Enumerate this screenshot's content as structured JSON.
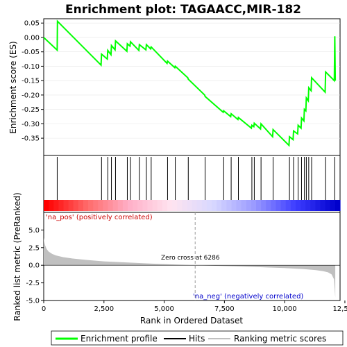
{
  "chart_data": {
    "type": "line",
    "title": "Enrichment plot: TAGAACC,MIR-182",
    "upper_panel": {
      "ylabel": "Enrichment score (ES)",
      "ylim": [
        -0.41,
        0.065
      ],
      "yticks": [
        0.05,
        0.0,
        -0.05,
        -0.1,
        -0.15,
        -0.2,
        -0.25,
        -0.3,
        -0.35
      ],
      "ytick_labels": [
        "0.05",
        "0.00",
        "-0.05",
        "-0.10",
        "-0.15",
        "-0.20",
        "-0.25",
        "-0.30",
        "-0.35"
      ],
      "series": [
        {
          "name": "Enrichment profile",
          "color": "#00ff00",
          "x": [
            0,
            560,
            570,
            2380,
            2400,
            2640,
            2660,
            2790,
            2810,
            2960,
            2980,
            3450,
            3470,
            3580,
            3600,
            3950,
            3970,
            4240,
            4260,
            4440,
            4460,
            5120,
            5140,
            5440,
            5460,
            5980,
            6000,
            6680,
            6700,
            7450,
            7470,
            7760,
            7780,
            8060,
            8080,
            8620,
            8640,
            8720,
            8740,
            9000,
            9020,
            9500,
            9520,
            10180,
            10200,
            10350,
            10370,
            10540,
            10560,
            10680,
            10700,
            10800,
            10820,
            10880,
            10900,
            10980,
            11000,
            11100,
            11120,
            11680,
            11700,
            12060,
            12080,
            12100
          ],
          "y": [
            0.0,
            -0.044,
            0.056,
            -0.096,
            -0.058,
            -0.075,
            -0.045,
            -0.06,
            -0.028,
            -0.043,
            -0.012,
            -0.048,
            -0.022,
            -0.03,
            -0.015,
            -0.045,
            -0.025,
            -0.043,
            -0.025,
            -0.04,
            -0.033,
            -0.09,
            -0.082,
            -0.105,
            -0.1,
            -0.14,
            -0.145,
            -0.2,
            -0.205,
            -0.26,
            -0.255,
            -0.275,
            -0.265,
            -0.285,
            -0.278,
            -0.315,
            -0.305,
            -0.31,
            -0.298,
            -0.318,
            -0.3,
            -0.345,
            -0.32,
            -0.375,
            -0.345,
            -0.355,
            -0.325,
            -0.335,
            -0.305,
            -0.315,
            -0.28,
            -0.29,
            -0.25,
            -0.255,
            -0.21,
            -0.22,
            -0.175,
            -0.185,
            -0.14,
            -0.19,
            -0.12,
            -0.15,
            0.004,
            -0.15
          ]
        }
      ]
    },
    "hits_panel": {
      "name": "Hits",
      "hit_positions": [
        560,
        2400,
        2660,
        2810,
        2980,
        3470,
        3600,
        3970,
        4260,
        4460,
        5140,
        5460,
        6000,
        6700,
        7470,
        7780,
        8080,
        8640,
        8740,
        9020,
        9520,
        10200,
        10370,
        10560,
        10700,
        10820,
        10900,
        11000,
        11120,
        11700,
        12080
      ],
      "gradient_colors": [
        "#ff0000",
        "#ff6b6b",
        "#ffb0c8",
        "#ffe4f0",
        "#d8d8ff",
        "#9a9aff",
        "#3c3cff",
        "#0000cc"
      ]
    },
    "lower_panel": {
      "ylabel": "Ranked list metric (PreRanked)",
      "xlabel": "Rank in Ordered Dataset",
      "xlim": [
        0,
        12300
      ],
      "xticks": [
        0,
        2500,
        5000,
        7500,
        10000,
        12500
      ],
      "xtick_labels": [
        "0",
        "2,500",
        "5,000",
        "7,500",
        "10,000",
        "12,500"
      ],
      "ylim": [
        -5.0,
        7.5
      ],
      "yticks": [
        5.0,
        2.5,
        0.0,
        -2.5,
        -5.0
      ],
      "ytick_labels": [
        "5.0",
        "2.5",
        "0.0",
        "-2.5",
        "-5.0"
      ],
      "series": [
        {
          "name": "Ranking metric scores",
          "color": "#c0c0c0",
          "x": [
            0,
            20,
            60,
            120,
            200,
            350,
            500,
            800,
            1200,
            1800,
            2500,
            3500,
            4500,
            5500,
            6286,
            7000,
            8000,
            9000,
            10000,
            10800,
            11300,
            11600,
            11800,
            11950,
            12050,
            12100
          ],
          "y": [
            3.9,
            3.4,
            2.8,
            2.3,
            1.95,
            1.6,
            1.4,
            1.15,
            0.95,
            0.75,
            0.55,
            0.38,
            0.23,
            0.1,
            0.0,
            -0.07,
            -0.17,
            -0.28,
            -0.4,
            -0.55,
            -0.7,
            -0.85,
            -1.0,
            -1.3,
            -2.0,
            -4.6
          ]
        }
      ],
      "annotations": {
        "pos_label": "'na_pos' (positively correlated)",
        "neg_label": "'na_neg' (negatively correlated)",
        "zero_cross": "Zero cross at 6286",
        "zero_cross_rank": 6286,
        "pos_color": "#cc0000",
        "neg_color": "#0000cc"
      }
    },
    "legend": {
      "placement": "bottom",
      "entries": [
        {
          "label": "Enrichment profile",
          "color": "#00ff00"
        },
        {
          "label": "Hits",
          "color": "#000000"
        },
        {
          "label": "Ranking metric scores",
          "color": "#c0c0c0"
        }
      ]
    }
  }
}
